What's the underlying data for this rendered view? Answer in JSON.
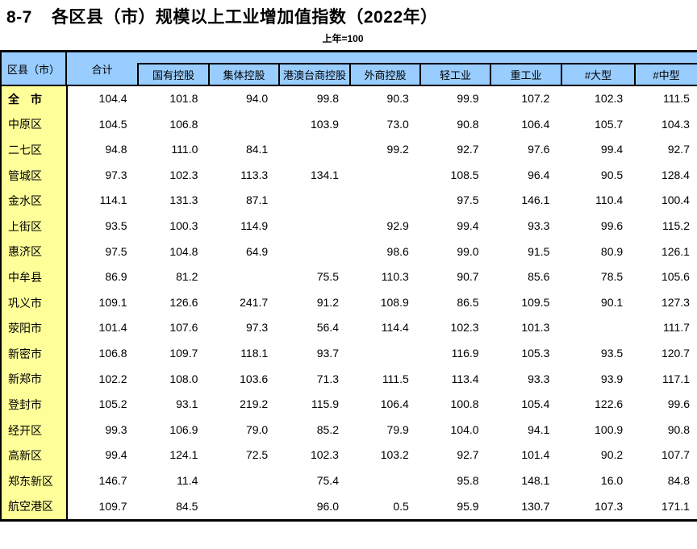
{
  "title_no": "8-7",
  "title_text": "各区县（市）规模以上工业增加值指数（2022年）",
  "subtitle": "上年=100",
  "colors": {
    "header_bg": "#99CCFF",
    "row_label_bg": "#FFFF99",
    "border": "#000000"
  },
  "chart_data": {
    "type": "table",
    "title": "8-7 各区县（市）规模以上工业增加值指数（2022年）",
    "note": "上年=100",
    "corner_header": "区县（市）",
    "total_header": "合计",
    "sub_headers": [
      "国有控股",
      "集体控股",
      "港澳台商控股",
      "外商控股",
      "轻工业",
      "重工业",
      "#大型",
      "#中型"
    ],
    "rows": [
      {
        "name": "全　市",
        "bold": true,
        "values": [
          "104.4",
          "101.8",
          "94.0",
          "99.8",
          "90.3",
          "99.9",
          "107.2",
          "102.3",
          "111.5"
        ]
      },
      {
        "name": "中原区",
        "bold": false,
        "values": [
          "104.5",
          "106.8",
          "",
          "103.9",
          "73.0",
          "90.8",
          "106.4",
          "105.7",
          "104.3"
        ]
      },
      {
        "name": "二七区",
        "bold": false,
        "values": [
          "94.8",
          "111.0",
          "84.1",
          "",
          "99.2",
          "92.7",
          "97.6",
          "99.4",
          "92.7"
        ]
      },
      {
        "name": "管城区",
        "bold": false,
        "values": [
          "97.3",
          "102.3",
          "113.3",
          "134.1",
          "",
          "108.5",
          "96.4",
          "90.5",
          "128.4"
        ]
      },
      {
        "name": "金水区",
        "bold": false,
        "values": [
          "114.1",
          "131.3",
          "87.1",
          "",
          "",
          "97.5",
          "146.1",
          "110.4",
          "100.4"
        ]
      },
      {
        "name": "上街区",
        "bold": false,
        "values": [
          "93.5",
          "100.3",
          "114.9",
          "",
          "92.9",
          "99.4",
          "93.3",
          "99.6",
          "115.2"
        ]
      },
      {
        "name": "惠济区",
        "bold": false,
        "values": [
          "97.5",
          "104.8",
          "64.9",
          "",
          "98.6",
          "99.0",
          "91.5",
          "80.9",
          "126.1"
        ]
      },
      {
        "name": "中牟县",
        "bold": false,
        "values": [
          "86.9",
          "81.2",
          "",
          "75.5",
          "110.3",
          "90.7",
          "85.6",
          "78.5",
          "105.6"
        ]
      },
      {
        "name": "巩义市",
        "bold": false,
        "values": [
          "109.1",
          "126.6",
          "241.7",
          "91.2",
          "108.9",
          "86.5",
          "109.5",
          "90.1",
          "127.3"
        ]
      },
      {
        "name": "荥阳市",
        "bold": false,
        "values": [
          "101.4",
          "107.6",
          "97.3",
          "56.4",
          "114.4",
          "102.3",
          "101.3",
          "",
          "111.7"
        ]
      },
      {
        "name": "新密市",
        "bold": false,
        "values": [
          "106.8",
          "109.7",
          "118.1",
          "93.7",
          "",
          "116.9",
          "105.3",
          "93.5",
          "120.7"
        ]
      },
      {
        "name": "新郑市",
        "bold": false,
        "values": [
          "102.2",
          "108.0",
          "103.6",
          "71.3",
          "111.5",
          "113.4",
          "93.3",
          "93.9",
          "117.1"
        ]
      },
      {
        "name": "登封市",
        "bold": false,
        "values": [
          "105.2",
          "93.1",
          "219.2",
          "115.9",
          "106.4",
          "100.8",
          "105.4",
          "122.6",
          "99.6"
        ]
      },
      {
        "name": "经开区",
        "bold": false,
        "values": [
          "99.3",
          "106.9",
          "79.0",
          "85.2",
          "79.9",
          "104.0",
          "94.1",
          "100.9",
          "90.8"
        ]
      },
      {
        "name": "高新区",
        "bold": false,
        "values": [
          "99.4",
          "124.1",
          "72.5",
          "102.3",
          "103.2",
          "92.7",
          "101.4",
          "90.2",
          "107.7"
        ]
      },
      {
        "name": "郑东新区",
        "bold": false,
        "values": [
          "146.7",
          "11.4",
          "",
          "75.4",
          "",
          "95.8",
          "148.1",
          "16.0",
          "84.8"
        ]
      },
      {
        "name": "航空港区",
        "bold": false,
        "values": [
          "109.7",
          "84.5",
          "",
          "96.0",
          "0.5",
          "95.9",
          "130.7",
          "107.3",
          "171.1"
        ]
      }
    ]
  }
}
